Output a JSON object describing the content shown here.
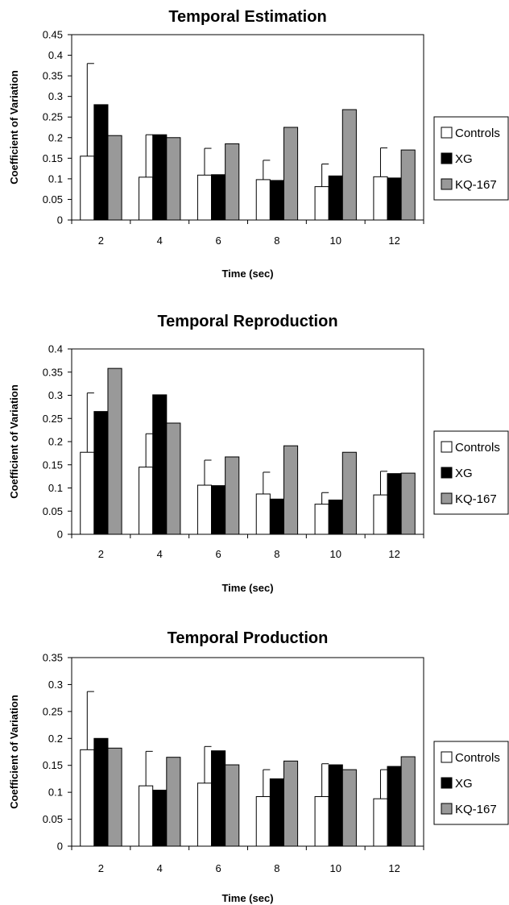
{
  "chart_data": [
    {
      "type": "bar",
      "title": "Temporal Estimation",
      "xlabel": "Time (sec)",
      "ylabel": "Coefficient of Variation",
      "categories": [
        "2",
        "4",
        "6",
        "8",
        "10",
        "12"
      ],
      "ylim": [
        0,
        0.45
      ],
      "yticks": [
        "0",
        "0.05",
        "0.1",
        "0.15",
        "0.2",
        "0.25",
        "0.3",
        "0.35",
        "0.4",
        "0.45"
      ],
      "grid": false,
      "legend_position": "right",
      "series": [
        {
          "name": "Controls",
          "color": "#ffffff",
          "values": [
            0.155,
            0.104,
            0.109,
            0.098,
            0.081,
            0.105
          ],
          "error_upper": [
            0.225,
            0.103,
            0.065,
            0.047,
            0.055,
            0.07
          ]
        },
        {
          "name": "XG",
          "color": "#000000",
          "values": [
            0.28,
            0.207,
            0.11,
            0.096,
            0.107,
            0.102
          ]
        },
        {
          "name": "KQ-167",
          "color": "#999999",
          "values": [
            0.205,
            0.2,
            0.185,
            0.225,
            0.268,
            0.17
          ]
        }
      ]
    },
    {
      "type": "bar",
      "title": "Temporal Reproduction",
      "xlabel": "Time (sec)",
      "ylabel": "Coefficient of Variation",
      "categories": [
        "2",
        "4",
        "6",
        "8",
        "10",
        "12"
      ],
      "ylim": [
        0,
        0.4
      ],
      "yticks": [
        "0",
        "0.05",
        "0.1",
        "0.15",
        "0.2",
        "0.25",
        "0.3",
        "0.35",
        "0.4"
      ],
      "grid": false,
      "legend_position": "right",
      "series": [
        {
          "name": "Controls",
          "color": "#ffffff",
          "values": [
            0.177,
            0.145,
            0.106,
            0.087,
            0.065,
            0.085
          ],
          "error_upper": [
            0.128,
            0.072,
            0.054,
            0.047,
            0.025,
            0.051
          ]
        },
        {
          "name": "XG",
          "color": "#000000",
          "values": [
            0.265,
            0.301,
            0.105,
            0.076,
            0.074,
            0.131
          ]
        },
        {
          "name": "KQ-167",
          "color": "#999999",
          "values": [
            0.358,
            0.24,
            0.167,
            0.191,
            0.177,
            0.132
          ]
        }
      ]
    },
    {
      "type": "bar",
      "title": "Temporal Production",
      "xlabel": "Time (sec)",
      "ylabel": "Coefficient of Variation",
      "categories": [
        "2",
        "4",
        "6",
        "8",
        "10",
        "12"
      ],
      "ylim": [
        0,
        0.35
      ],
      "yticks": [
        "0",
        "0.05",
        "0.1",
        "0.15",
        "0.2",
        "0.25",
        "0.3",
        "0.35"
      ],
      "grid": false,
      "legend_position": "right",
      "series": [
        {
          "name": "Controls",
          "color": "#ffffff",
          "values": [
            0.179,
            0.112,
            0.117,
            0.092,
            0.092,
            0.088
          ],
          "error_upper": [
            0.108,
            0.064,
            0.068,
            0.05,
            0.061,
            0.054
          ]
        },
        {
          "name": "XG",
          "color": "#000000",
          "values": [
            0.2,
            0.104,
            0.177,
            0.125,
            0.151,
            0.148
          ]
        },
        {
          "name": "KQ-167",
          "color": "#999999",
          "values": [
            0.182,
            0.165,
            0.151,
            0.158,
            0.142,
            0.166
          ]
        }
      ]
    }
  ]
}
